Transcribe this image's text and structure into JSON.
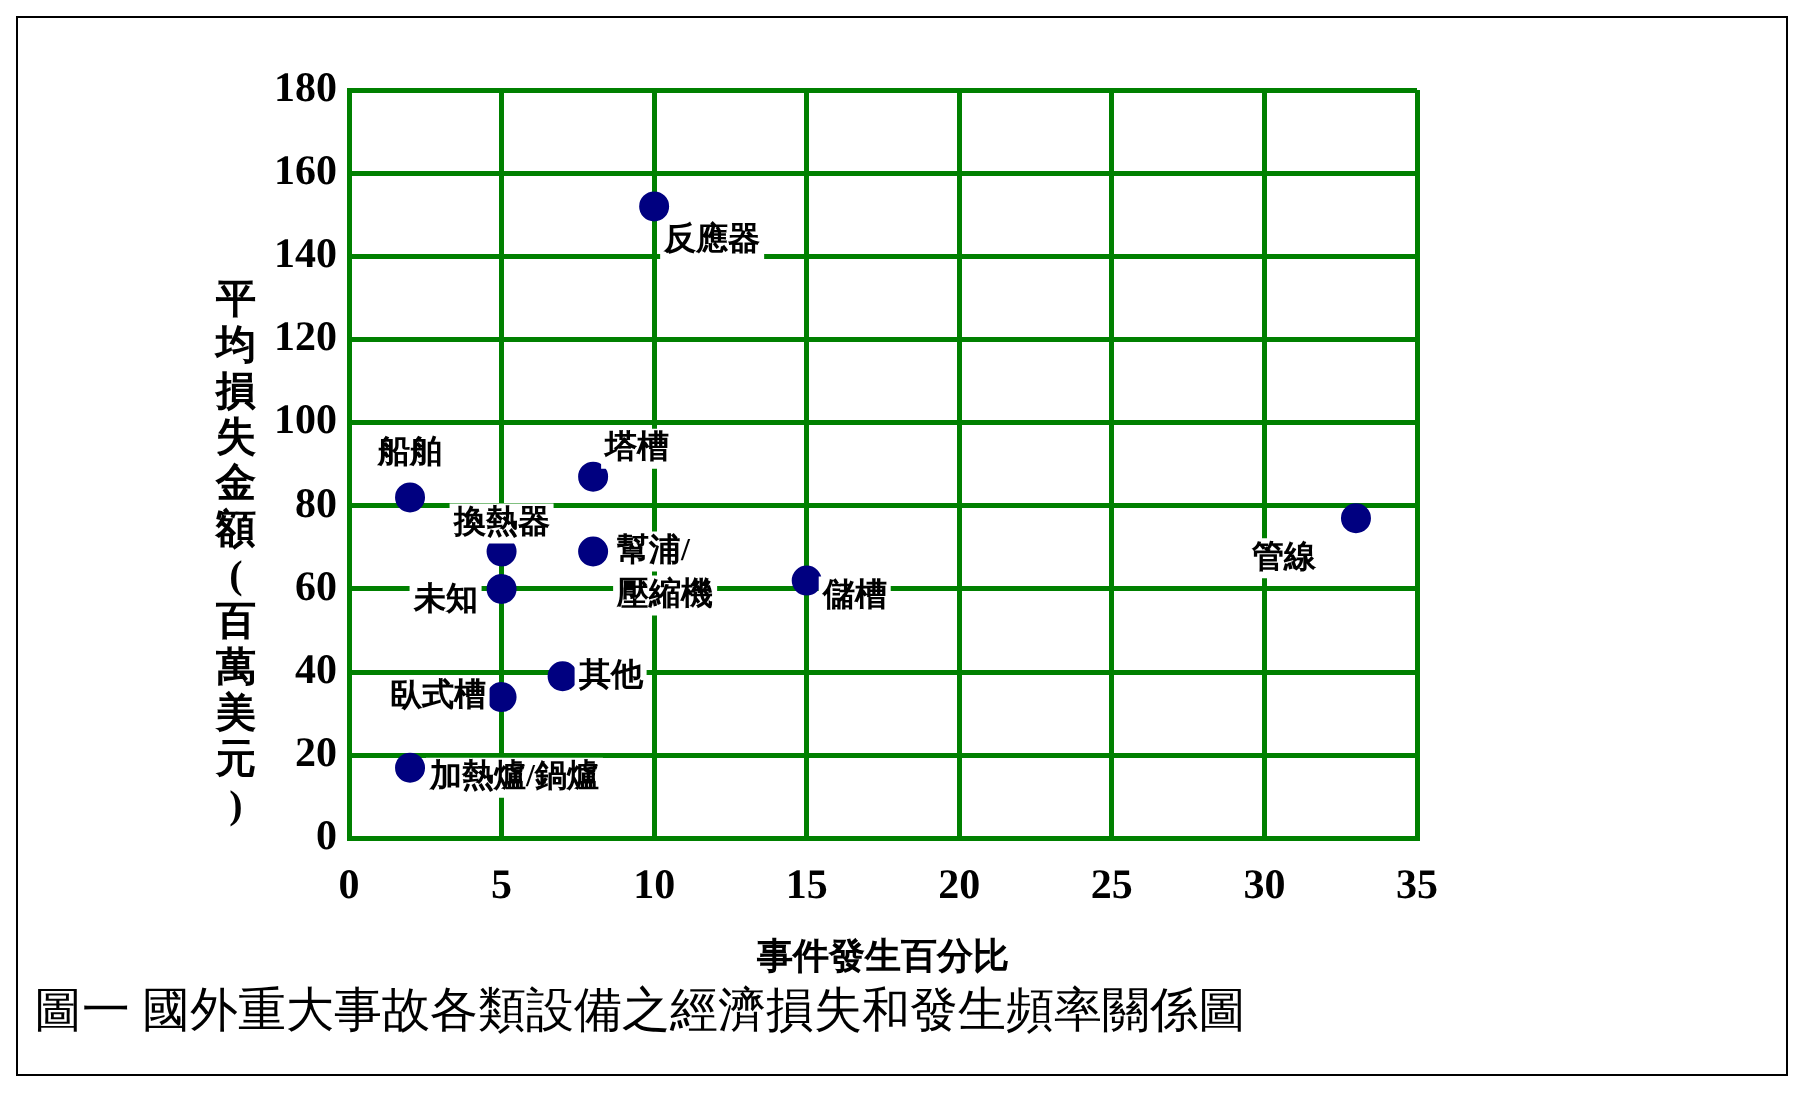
{
  "chart_data": {
    "type": "scatter",
    "xlabel": "事件發生百分比",
    "ylabel": "平均損失金額(百萬美元)",
    "x": [
      2,
      5,
      5,
      5,
      2,
      8,
      8,
      7,
      10,
      15,
      33
    ],
    "values": [
      82,
      69,
      60,
      34,
      17,
      87,
      69,
      39,
      152,
      62,
      77
    ],
    "color": "#000080",
    "marker": "circle",
    "xlim": [
      0,
      35
    ],
    "xticks": [
      0,
      5,
      10,
      15,
      20,
      25,
      30,
      35
    ],
    "ylim": [
      0,
      180
    ],
    "yticks": [
      0,
      20,
      40,
      60,
      80,
      100,
      120,
      140,
      160,
      180
    ],
    "grid": true,
    "legend": false,
    "annotations": [
      {
        "text": "船舶",
        "x": 2,
        "y": 82
      },
      {
        "text": "換熱器",
        "x": 5,
        "y": 69
      },
      {
        "text": "未知",
        "x": 5,
        "y": 60
      },
      {
        "text": "臥式槽",
        "x": 5,
        "y": 34
      },
      {
        "text": "加熱爐/鍋爐",
        "x": 2,
        "y": 17
      },
      {
        "text": "塔槽",
        "x": 8,
        "y": 87
      },
      {
        "text": "幫浦/壓縮機",
        "x": 8,
        "y": 69
      },
      {
        "text": "其他",
        "x": 7,
        "y": 39
      },
      {
        "text": "反應器",
        "x": 10,
        "y": 152
      },
      {
        "text": "儲槽",
        "x": 15,
        "y": 62
      },
      {
        "text": "管線",
        "x": 33,
        "y": 77
      },
      "圖一 國外重大事故各類設備之經濟損失和發生頻率關係圖"
    ]
  }
}
